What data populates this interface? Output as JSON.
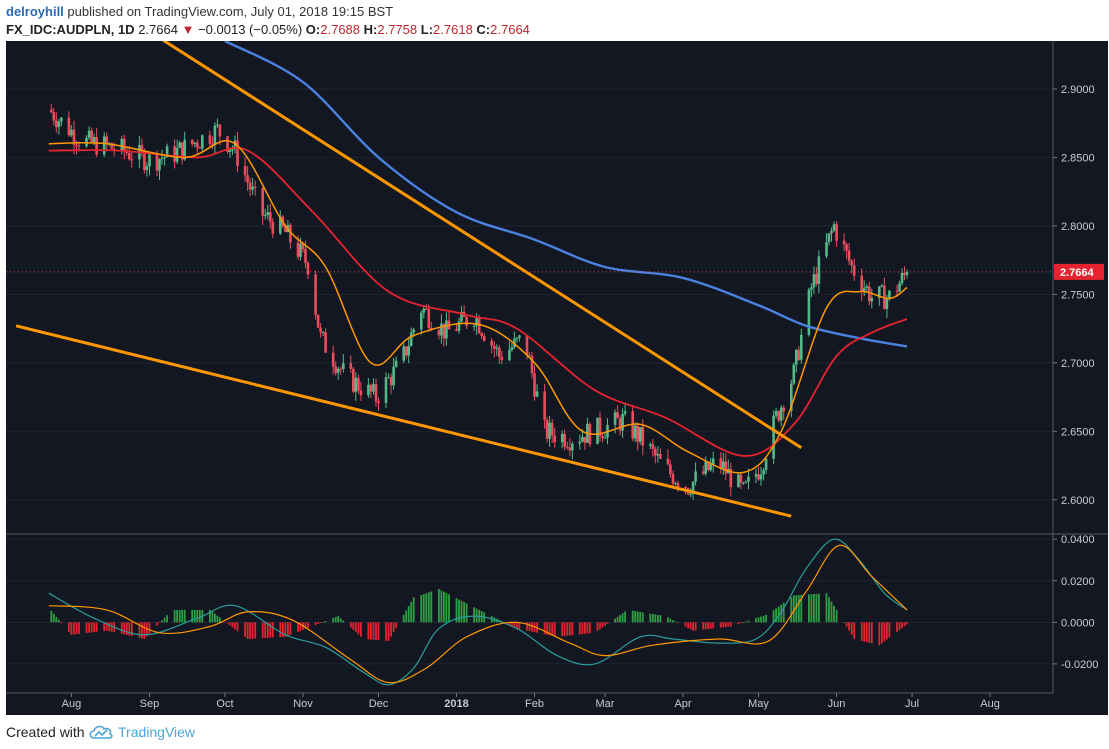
{
  "header": {
    "author": "delroyhill",
    "published_text": "published on TradingView.com, July 01, 2018 19:15 BST",
    "symbol": "FX_IDC:AUDPLN, 1D",
    "last": "2.7664",
    "change_arrow": "▼",
    "change": "−0.0013 (−0.05%)",
    "open_label": "O:",
    "open": "2.7688",
    "high_label": "H:",
    "high": "2.7758",
    "low_label": "L:",
    "low": "2.7618",
    "close_label": "C:",
    "close": "2.7664"
  },
  "footer": {
    "created_with": "Created with",
    "brand": "TradingView",
    "logo_icon": "tradingview-cloud-icon"
  },
  "colors": {
    "background": "#131722",
    "up_candle": "#53b987",
    "down_candle": "#eb4d5c",
    "ma_fast": "#ff9800",
    "ma_mid": "#e5242f",
    "ma_slow": "#4a82e0",
    "trendline": "#ff9800",
    "macd_line": "#2a9d9a",
    "signal_line": "#ff9800",
    "hist_pos": "#2ea043",
    "hist_neg": "#e5242f"
  },
  "chart_data": [
    {
      "type": "candlestick",
      "panel": "price",
      "symbol": "FX_IDC:AUDPLN",
      "interval": "1D",
      "x_axis_labels": [
        "Aug",
        "Sep",
        "Oct",
        "Nov",
        "Dec",
        "2018",
        "Feb",
        "Mar",
        "Apr",
        "May",
        "Jun",
        "Jul",
        "Aug"
      ],
      "y_ticks": [
        "2.6000",
        "2.6500",
        "2.7000",
        "2.7500",
        "2.8000",
        "2.8500",
        "2.9000"
      ],
      "ylim": [
        2.575,
        2.935
      ],
      "last_price_label": "2.7664",
      "anchors": [
        [
          "2017-07-23",
          2.885
        ],
        [
          "2017-08-05",
          2.862
        ],
        [
          "2017-08-20",
          2.856
        ],
        [
          "2017-09-01",
          2.848
        ],
        [
          "2017-09-10",
          2.852
        ],
        [
          "2017-09-20",
          2.862
        ],
        [
          "2017-09-28",
          2.87
        ],
        [
          "2017-10-05",
          2.855
        ],
        [
          "2017-10-15",
          2.81
        ],
        [
          "2017-10-25",
          2.795
        ],
        [
          "2017-11-03",
          2.772
        ],
        [
          "2017-11-08",
          2.718
        ],
        [
          "2017-11-18",
          2.69
        ],
        [
          "2017-11-30",
          2.675
        ],
        [
          "2017-12-10",
          2.7
        ],
        [
          "2017-12-18",
          2.74
        ],
        [
          "2017-12-28",
          2.722
        ],
        [
          "2018-01-08",
          2.735
        ],
        [
          "2018-01-18",
          2.705
        ],
        [
          "2018-01-28",
          2.718
        ],
        [
          "2018-02-05",
          2.65
        ],
        [
          "2018-02-15",
          2.645
        ],
        [
          "2018-02-28",
          2.652
        ],
        [
          "2018-03-08",
          2.658
        ],
        [
          "2018-03-15",
          2.645
        ],
        [
          "2018-03-25",
          2.622
        ],
        [
          "2018-04-03",
          2.61
        ],
        [
          "2018-04-15",
          2.628
        ],
        [
          "2018-04-25",
          2.605
        ],
        [
          "2018-05-02",
          2.625
        ],
        [
          "2018-05-08",
          2.66
        ],
        [
          "2018-05-15",
          2.692
        ],
        [
          "2018-05-22",
          2.755
        ],
        [
          "2018-05-31",
          2.8
        ],
        [
          "2018-06-07",
          2.77
        ],
        [
          "2018-06-15",
          2.748
        ],
        [
          "2018-06-22",
          2.748
        ],
        [
          "2018-06-29",
          2.766
        ]
      ],
      "ma_fast": [
        [
          "2017-07-23",
          2.86
        ],
        [
          "2017-08-15",
          2.86
        ],
        [
          "2017-09-15",
          2.85
        ],
        [
          "2017-10-05",
          2.86
        ],
        [
          "2017-10-25",
          2.8
        ],
        [
          "2017-11-10",
          2.77
        ],
        [
          "2017-11-28",
          2.7
        ],
        [
          "2017-12-15",
          2.72
        ],
        [
          "2018-01-10",
          2.728
        ],
        [
          "2018-02-01",
          2.7
        ],
        [
          "2018-02-20",
          2.65
        ],
        [
          "2018-03-15",
          2.655
        ],
        [
          "2018-04-03",
          2.635
        ],
        [
          "2018-04-25",
          2.62
        ],
        [
          "2018-05-10",
          2.65
        ],
        [
          "2018-05-28",
          2.74
        ],
        [
          "2018-06-10",
          2.752
        ],
        [
          "2018-06-22",
          2.747
        ],
        [
          "2018-06-29",
          2.755
        ]
      ],
      "ma_mid": [
        [
          "2017-07-23",
          2.855
        ],
        [
          "2017-08-20",
          2.855
        ],
        [
          "2017-09-20",
          2.85
        ],
        [
          "2017-10-10",
          2.855
        ],
        [
          "2017-11-05",
          2.81
        ],
        [
          "2017-12-05",
          2.752
        ],
        [
          "2018-01-05",
          2.735
        ],
        [
          "2018-01-25",
          2.725
        ],
        [
          "2018-02-25",
          2.68
        ],
        [
          "2018-03-25",
          2.66
        ],
        [
          "2018-04-25",
          2.632
        ],
        [
          "2018-05-15",
          2.655
        ],
        [
          "2018-06-01",
          2.705
        ],
        [
          "2018-06-15",
          2.722
        ],
        [
          "2018-06-29",
          2.732
        ]
      ],
      "ma_slow": [
        [
          "2017-10-01",
          2.935
        ],
        [
          "2017-11-01",
          2.905
        ],
        [
          "2017-12-01",
          2.85
        ],
        [
          "2018-01-01",
          2.81
        ],
        [
          "2018-02-01",
          2.79
        ],
        [
          "2018-03-01",
          2.77
        ],
        [
          "2018-04-01",
          2.762
        ],
        [
          "2018-05-01",
          2.742
        ],
        [
          "2018-05-20",
          2.727
        ],
        [
          "2018-06-10",
          2.718
        ],
        [
          "2018-06-29",
          2.712
        ]
      ],
      "trendlines": [
        {
          "from": [
            "2017-09-01",
            2.942
          ],
          "to": [
            "2018-05-18",
            2.638
          ]
        },
        {
          "from": [
            "2017-07-10",
            2.727
          ],
          "to": [
            "2018-05-14",
            2.588
          ]
        }
      ]
    },
    {
      "type": "histogram+line",
      "panel": "macd",
      "y_ticks": [
        "-0.0200",
        "0.0000",
        "0.0200",
        "0.0400"
      ],
      "ylim": [
        -0.034,
        0.0425
      ],
      "macd_line": [
        [
          "2017-07-23",
          0.014
        ],
        [
          "2017-08-10",
          0.002
        ],
        [
          "2017-08-30",
          -0.006
        ],
        [
          "2017-09-20",
          0.002
        ],
        [
          "2017-10-05",
          0.008
        ],
        [
          "2017-10-25",
          -0.006
        ],
        [
          "2017-11-10",
          -0.012
        ],
        [
          "2017-11-25",
          -0.024
        ],
        [
          "2017-12-05",
          -0.03
        ],
        [
          "2017-12-15",
          -0.022
        ],
        [
          "2017-12-25",
          -0.003
        ],
        [
          "2018-01-08",
          0.003
        ],
        [
          "2018-01-25",
          -0.003
        ],
        [
          "2018-02-10",
          -0.016
        ],
        [
          "2018-02-25",
          -0.02
        ],
        [
          "2018-03-15",
          -0.007
        ],
        [
          "2018-03-28",
          -0.008
        ],
        [
          "2018-04-15",
          -0.01
        ],
        [
          "2018-04-30",
          -0.008
        ],
        [
          "2018-05-10",
          0.005
        ],
        [
          "2018-05-20",
          0.026
        ],
        [
          "2018-05-31",
          0.04
        ],
        [
          "2018-06-10",
          0.03
        ],
        [
          "2018-06-20",
          0.014
        ],
        [
          "2018-06-29",
          0.006
        ]
      ],
      "signal_line": [
        [
          "2017-07-23",
          0.008
        ],
        [
          "2017-08-15",
          0.006
        ],
        [
          "2017-09-05",
          -0.005
        ],
        [
          "2017-09-25",
          -0.002
        ],
        [
          "2017-10-10",
          0.005
        ],
        [
          "2017-10-28",
          0.001
        ],
        [
          "2017-11-20",
          -0.018
        ],
        [
          "2017-12-05",
          -0.029
        ],
        [
          "2017-12-20",
          -0.022
        ],
        [
          "2018-01-05",
          -0.007
        ],
        [
          "2018-01-25",
          0.0
        ],
        [
          "2018-02-15",
          -0.01
        ],
        [
          "2018-03-01",
          -0.016
        ],
        [
          "2018-03-20",
          -0.011
        ],
        [
          "2018-04-15",
          -0.008
        ],
        [
          "2018-05-05",
          -0.009
        ],
        [
          "2018-05-20",
          0.015
        ],
        [
          "2018-06-02",
          0.037
        ],
        [
          "2018-06-15",
          0.022
        ],
        [
          "2018-06-29",
          0.006
        ]
      ],
      "histogram": [
        [
          "2017-07-23",
          0.007
        ],
        [
          "2017-08-01",
          -0.006
        ],
        [
          "2017-08-15",
          -0.004
        ],
        [
          "2017-08-30",
          -0.008
        ],
        [
          "2017-09-10",
          0.006
        ],
        [
          "2017-09-25",
          0.006
        ],
        [
          "2017-10-10",
          -0.008
        ],
        [
          "2017-10-25",
          -0.007
        ],
        [
          "2017-11-15",
          0.003
        ],
        [
          "2017-11-25",
          -0.008
        ],
        [
          "2017-12-05",
          -0.009
        ],
        [
          "2017-12-15",
          0.012
        ],
        [
          "2017-12-25",
          0.016
        ],
        [
          "2018-01-10",
          0.006
        ],
        [
          "2018-01-25",
          -0.003
        ],
        [
          "2018-02-10",
          -0.007
        ],
        [
          "2018-02-25",
          -0.005
        ],
        [
          "2018-03-10",
          0.006
        ],
        [
          "2018-03-25",
          0.003
        ],
        [
          "2018-04-05",
          -0.004
        ],
        [
          "2018-04-20",
          -0.002
        ],
        [
          "2018-05-05",
          0.004
        ],
        [
          "2018-05-15",
          0.013
        ],
        [
          "2018-05-28",
          0.014
        ],
        [
          "2018-06-08",
          -0.008
        ],
        [
          "2018-06-18",
          -0.011
        ],
        [
          "2018-06-29",
          -0.001
        ]
      ]
    }
  ]
}
